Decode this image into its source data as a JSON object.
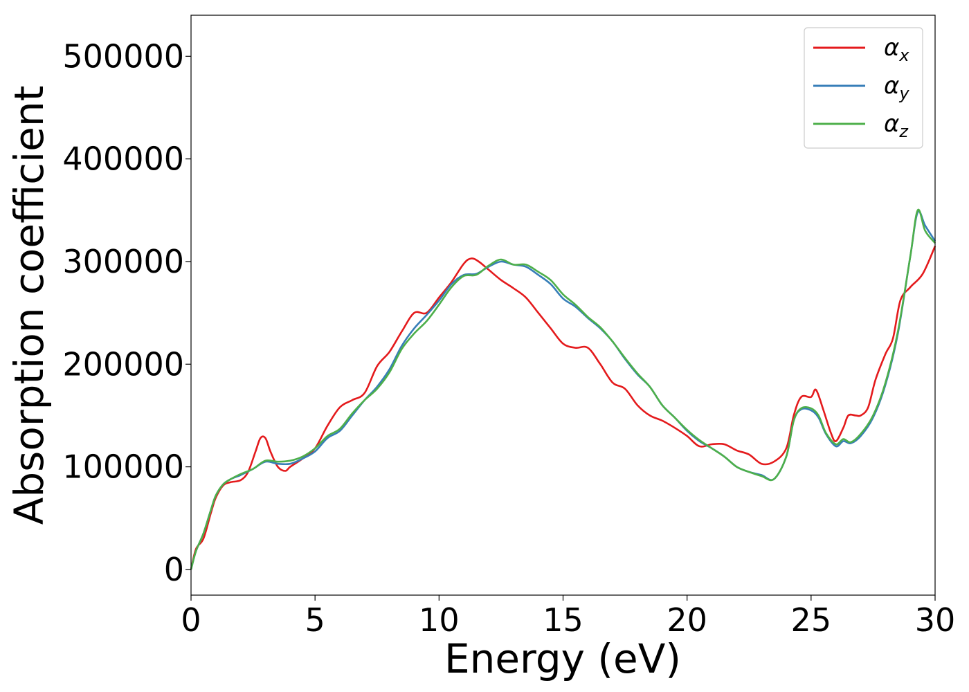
{
  "chart_data": {
    "type": "line",
    "title": "",
    "xlabel": "Energy (eV)",
    "ylabel": "Absorption coefficient",
    "xlim": [
      0,
      30
    ],
    "ylim": [
      -25000,
      540000
    ],
    "xticks": [
      0,
      5,
      10,
      15,
      20,
      25,
      30
    ],
    "yticks": [
      0,
      100000,
      200000,
      300000,
      400000,
      500000
    ],
    "xtick_labels": [
      "0",
      "5",
      "10",
      "15",
      "20",
      "25",
      "30"
    ],
    "ytick_labels": [
      "0",
      "100000",
      "200000",
      "300000",
      "400000",
      "500000"
    ],
    "grid": false,
    "legend_position": "top-right",
    "legend_entries": [
      {
        "symbol": "α",
        "sub": "x"
      },
      {
        "symbol": "α",
        "sub": "y"
      },
      {
        "symbol": "α",
        "sub": "z"
      }
    ],
    "series": [
      {
        "color": "#e41a1c",
        "x": [
          0,
          0.2,
          0.5,
          0.8,
          1.0,
          1.3,
          1.6,
          2.0,
          2.3,
          2.6,
          2.8,
          3.0,
          3.2,
          3.5,
          3.8,
          4.0,
          4.5,
          5.0,
          5.5,
          6.0,
          6.5,
          7.0,
          7.5,
          8.0,
          8.5,
          9.0,
          9.5,
          10.0,
          10.5,
          11.0,
          11.3,
          11.6,
          12.0,
          12.5,
          13.0,
          13.5,
          14.0,
          14.5,
          15.0,
          15.5,
          16.0,
          16.5,
          17.0,
          17.5,
          18.0,
          18.5,
          19.0,
          19.5,
          20.0,
          20.5,
          21.0,
          21.5,
          22.0,
          22.5,
          23.0,
          23.5,
          24.0,
          24.3,
          24.6,
          25.0,
          25.2,
          25.5,
          25.8,
          26.0,
          26.3,
          26.5,
          26.8,
          27.0,
          27.3,
          27.6,
          28.0,
          28.3,
          28.6,
          29.0,
          29.5,
          30.0
        ],
        "values": [
          0,
          20000,
          30000,
          55000,
          70000,
          82000,
          85000,
          87000,
          95000,
          115000,
          128000,
          128000,
          115000,
          100000,
          96000,
          100000,
          108000,
          118000,
          140000,
          158000,
          165000,
          172000,
          198000,
          212000,
          232000,
          250000,
          250000,
          265000,
          280000,
          298000,
          303000,
          300000,
          292000,
          282000,
          274000,
          265000,
          250000,
          235000,
          220000,
          216000,
          216000,
          200000,
          182000,
          176000,
          160000,
          150000,
          145000,
          138000,
          130000,
          120000,
          122000,
          122000,
          116000,
          112000,
          103000,
          105000,
          118000,
          150000,
          168000,
          168000,
          175000,
          155000,
          133000,
          125000,
          138000,
          150000,
          150000,
          150000,
          158000,
          185000,
          210000,
          225000,
          262000,
          275000,
          288000,
          315000
        ]
      },
      {
        "color": "#377eb8",
        "x": [
          0,
          0.2,
          0.5,
          0.8,
          1.0,
          1.3,
          1.6,
          2.0,
          2.5,
          3.0,
          3.5,
          4.0,
          4.5,
          5.0,
          5.5,
          6.0,
          6.5,
          7.0,
          7.5,
          8.0,
          8.5,
          9.0,
          9.5,
          10.0,
          10.5,
          11.0,
          11.5,
          12.0,
          12.5,
          13.0,
          13.5,
          14.0,
          14.5,
          15.0,
          15.5,
          16.0,
          16.5,
          17.0,
          17.5,
          18.0,
          18.5,
          19.0,
          19.5,
          20.0,
          20.5,
          21.0,
          21.5,
          22.0,
          22.5,
          23.0,
          23.5,
          24.0,
          24.3,
          24.6,
          25.0,
          25.3,
          25.6,
          26.0,
          26.3,
          26.6,
          27.0,
          27.5,
          28.0,
          28.5,
          29.0,
          29.3,
          29.6,
          30.0
        ],
        "values": [
          0,
          18000,
          35000,
          58000,
          72000,
          83000,
          88000,
          92000,
          98000,
          105000,
          103000,
          103000,
          108000,
          115000,
          128000,
          135000,
          150000,
          165000,
          178000,
          195000,
          218000,
          235000,
          248000,
          262000,
          278000,
          287000,
          288000,
          295000,
          300000,
          297000,
          295000,
          287000,
          278000,
          264000,
          256000,
          245000,
          235000,
          222000,
          205000,
          190000,
          178000,
          160000,
          148000,
          135000,
          125000,
          118000,
          110000,
          100000,
          95000,
          92000,
          88000,
          110000,
          145000,
          156000,
          155000,
          148000,
          132000,
          120000,
          125000,
          123000,
          130000,
          148000,
          180000,
          230000,
          305000,
          348000,
          335000,
          320000
        ]
      },
      {
        "color": "#4daf4a",
        "x": [
          0,
          0.2,
          0.5,
          0.8,
          1.0,
          1.3,
          1.6,
          2.0,
          2.5,
          3.0,
          3.5,
          4.0,
          4.5,
          5.0,
          5.5,
          6.0,
          6.5,
          7.0,
          7.5,
          8.0,
          8.5,
          9.0,
          9.5,
          10.0,
          10.5,
          11.0,
          11.5,
          12.0,
          12.5,
          13.0,
          13.5,
          14.0,
          14.5,
          15.0,
          15.5,
          16.0,
          16.5,
          17.0,
          17.5,
          18.0,
          18.5,
          19.0,
          19.5,
          20.0,
          20.5,
          21.0,
          21.5,
          22.0,
          22.5,
          23.0,
          23.5,
          24.0,
          24.3,
          24.6,
          25.0,
          25.3,
          25.6,
          26.0,
          26.3,
          26.6,
          27.0,
          27.5,
          28.0,
          28.5,
          29.0,
          29.3,
          29.6,
          30.0
        ],
        "values": [
          0,
          18000,
          35000,
          58000,
          72000,
          83000,
          88000,
          93000,
          98000,
          106000,
          105000,
          106000,
          110000,
          118000,
          130000,
          137000,
          152000,
          165000,
          176000,
          192000,
          215000,
          230000,
          242000,
          258000,
          275000,
          286000,
          287000,
          296000,
          302000,
          297000,
          297000,
          290000,
          282000,
          268000,
          258000,
          246000,
          236000,
          222000,
          206000,
          191000,
          178000,
          160000,
          148000,
          136000,
          126000,
          118000,
          110000,
          100000,
          95000,
          91000,
          88000,
          110000,
          145000,
          157000,
          157000,
          150000,
          133000,
          122000,
          127000,
          124000,
          132000,
          150000,
          182000,
          232000,
          305000,
          350000,
          330000,
          318000
        ]
      }
    ]
  }
}
